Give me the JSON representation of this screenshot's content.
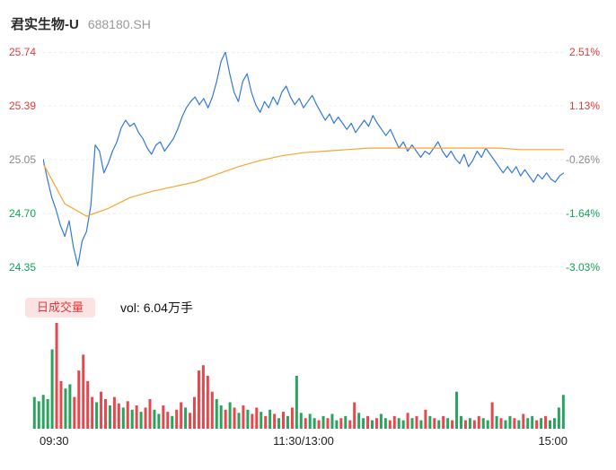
{
  "header": {
    "title": "君实生物-U",
    "code": "688180.SH"
  },
  "colors": {
    "up_text": "#e23b3b",
    "down_text": "#12a456",
    "neutral_text": "#8a8a8a",
    "price_line": "#3478de",
    "avg_line": "#f6a632",
    "vol_up_bar": "#e5484d",
    "vol_down_bar": "#2aa35e",
    "badge_bg": "#fbe3e3",
    "grid": "#ececec"
  },
  "price_axis_left": [
    {
      "text": "25.74",
      "color": "#e23b3b"
    },
    {
      "text": "25.39",
      "color": "#e23b3b"
    },
    {
      "text": "25.05",
      "color": "#8a8a8a"
    },
    {
      "text": "24.70",
      "color": "#12a456"
    },
    {
      "text": "24.35",
      "color": "#12a456"
    }
  ],
  "percent_axis_right": [
    {
      "text": "2.51%",
      "color": "#e23b3b"
    },
    {
      "text": "1.13%",
      "color": "#e23b3b"
    },
    {
      "text": "-0.26%",
      "color": "#8a8a8a"
    },
    {
      "text": "-1.64%",
      "color": "#12a456"
    },
    {
      "text": "-3.03%",
      "color": "#12a456"
    }
  ],
  "volume_header": {
    "badge": "日成交量",
    "vol_label": "vol: 6.04万手"
  },
  "x_axis": {
    "labels": [
      "09:30",
      "11:30/13:00",
      "15:00"
    ]
  },
  "chart_data": {
    "type": "line",
    "title": "君实生物-U 688180.SH 分时走势",
    "ylim": [
      24.35,
      25.74
    ],
    "y_ticks": [
      "25.74",
      "25.39",
      "25.05",
      "24.70",
      "24.35"
    ],
    "right_ticks_percent": [
      "2.51%",
      "1.13%",
      "-0.26%",
      "-1.64%",
      "-3.03%"
    ],
    "x_ticks": [
      "09:30",
      "11:30/13:00",
      "15:00"
    ],
    "x_total_minutes": 240,
    "grid": true,
    "legend": "none",
    "series": [
      {
        "name": "price",
        "color": "#3478de",
        "x_step_minutes": 2,
        "values": [
          25.05,
          24.92,
          24.8,
          24.72,
          24.62,
          24.55,
          24.65,
          24.48,
          24.36,
          24.52,
          24.58,
          24.75,
          25.14,
          25.1,
          24.96,
          25.02,
          25.1,
          25.16,
          25.25,
          25.3,
          25.26,
          25.28,
          25.22,
          25.18,
          25.12,
          25.08,
          25.14,
          25.16,
          25.1,
          25.14,
          25.18,
          25.24,
          25.32,
          25.38,
          25.42,
          25.45,
          25.4,
          25.44,
          25.38,
          25.45,
          25.55,
          25.68,
          25.74,
          25.6,
          25.48,
          25.42,
          25.55,
          25.6,
          25.48,
          25.4,
          25.35,
          25.42,
          25.38,
          25.45,
          25.4,
          25.48,
          25.52,
          25.45,
          25.4,
          25.44,
          25.38,
          25.42,
          25.46,
          25.4,
          25.35,
          25.3,
          25.34,
          25.28,
          25.32,
          25.28,
          25.24,
          25.28,
          25.22,
          25.26,
          25.3,
          25.26,
          25.33,
          25.28,
          25.24,
          25.2,
          25.24,
          25.18,
          25.12,
          25.16,
          25.1,
          25.14,
          25.1,
          25.06,
          25.1,
          25.08,
          25.12,
          25.16,
          25.1,
          25.06,
          25.1,
          25.05,
          25.02,
          25.08,
          25.0,
          25.04,
          25.1,
          25.06,
          25.12,
          25.08,
          25.04,
          25.0,
          24.96,
          25.0,
          24.96,
          25.0,
          24.94,
          24.98,
          24.94,
          24.9,
          24.95,
          24.92,
          24.96,
          24.92,
          24.9,
          24.94,
          24.96
        ]
      },
      {
        "name": "avg_price",
        "color": "#f6a632",
        "x_step_minutes": 10,
        "values": [
          25.02,
          24.76,
          24.68,
          24.73,
          24.8,
          24.84,
          24.87,
          24.9,
          24.95,
          25.0,
          25.04,
          25.07,
          25.09,
          25.1,
          25.11,
          25.12,
          25.12,
          25.12,
          25.12,
          25.12,
          25.12,
          25.12,
          25.11,
          25.11,
          25.11
        ]
      }
    ],
    "volume": {
      "type": "bar",
      "total_label": "vol: 6.04万手",
      "unit": "relative_0_1",
      "up_color": "#e5484d",
      "down_color": "#2aa35e",
      "heights": [
        0.3,
        0.26,
        0.32,
        0.28,
        0.75,
        1.0,
        0.45,
        0.38,
        0.42,
        0.3,
        0.55,
        0.7,
        0.45,
        0.3,
        0.25,
        0.35,
        0.28,
        0.22,
        0.3,
        0.24,
        0.2,
        0.26,
        0.18,
        0.22,
        0.16,
        0.2,
        0.28,
        0.18,
        0.14,
        0.22,
        0.16,
        0.12,
        0.18,
        0.25,
        0.2,
        0.15,
        0.3,
        0.55,
        0.6,
        0.5,
        0.35,
        0.28,
        0.22,
        0.18,
        0.25,
        0.2,
        0.15,
        0.22,
        0.18,
        0.14,
        0.2,
        0.16,
        0.12,
        0.18,
        0.14,
        0.1,
        0.16,
        0.12,
        0.2,
        0.5,
        0.15,
        0.1,
        0.14,
        0.1,
        0.08,
        0.12,
        0.1,
        0.14,
        0.08,
        0.1,
        0.12,
        0.08,
        0.25,
        0.15,
        0.1,
        0.12,
        0.08,
        0.1,
        0.14,
        0.1,
        0.08,
        0.12,
        0.1,
        0.08,
        0.15,
        0.1,
        0.12,
        0.08,
        0.18,
        0.12,
        0.1,
        0.08,
        0.12,
        0.1,
        0.08,
        0.35,
        0.12,
        0.08,
        0.1,
        0.08,
        0.12,
        0.1,
        0.08,
        0.25,
        0.12,
        0.1,
        0.08,
        0.12,
        0.1,
        0.08,
        0.14,
        0.1,
        0.12,
        0.08,
        0.1,
        0.12,
        0.08,
        0.1,
        0.2,
        0.32
      ],
      "directions": "gggggrrggrrrrrgrrgrrgrgrgrrggrrgrrgrrrrrrggrgrgrgrrgrgrgrgrggrggrgrggrgrrggrgrggrrggrgrgrgrgrgrggrgrrggrgrggrgrggrgrgggg"
    }
  }
}
